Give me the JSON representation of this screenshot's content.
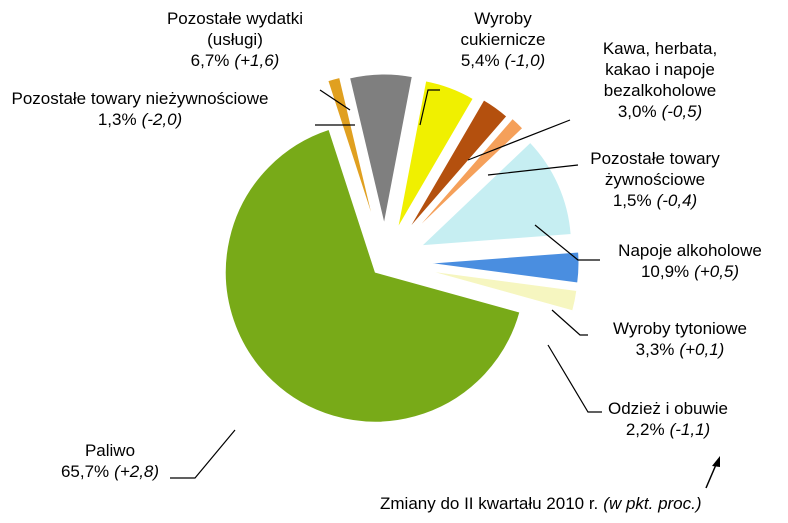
{
  "chart_data": {
    "type": "pie",
    "categories": [
      "Pozostałe towary nieżywnościowe",
      "Pozostałe wydatki (usługi)",
      "Wyroby cukiernicze",
      "Kawa, herbata, kakao i napoje bezalkoholowe",
      "Pozostałe towary żywnościowe",
      "Napoje alkoholowe",
      "Wyroby tytoniowe",
      "Odzież i obuwie",
      "Paliwo"
    ],
    "values": [
      1.3,
      6.7,
      5.4,
      3.0,
      1.5,
      10.9,
      3.3,
      2.2,
      65.7
    ],
    "value_labels": [
      "1,3%",
      "6,7%",
      "5,4%",
      "3,0%",
      "1,5%",
      "10,9%",
      "3,3%",
      "2,2%",
      "65,7%"
    ],
    "change_labels": [
      "(-2,0)",
      "(+1,6)",
      "(-1,0)",
      "(-0,5)",
      "(-0,4)",
      "(+0,5)",
      "(+0,1)",
      "(-1,1)",
      "(+2,8)"
    ],
    "colors": [
      "#e0a020",
      "#7f7f7f",
      "#f0f000",
      "#b4500e",
      "#f5a05a",
      "#c6eef2",
      "#4a8ee0",
      "#f6f6c0",
      "#78aa18"
    ],
    "annotation": "Zmiany do II kwartału 2010 r.",
    "annotation_note": "(w pkt. proc.)"
  }
}
